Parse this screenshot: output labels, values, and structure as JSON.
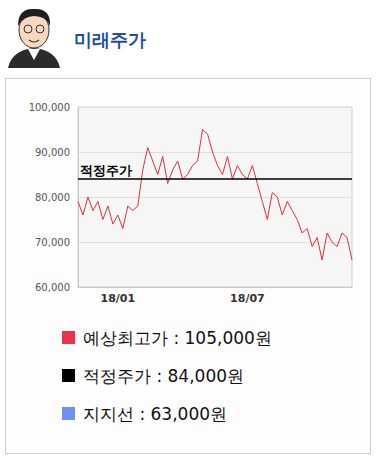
{
  "header": {
    "title": "미래주가"
  },
  "chart_data": {
    "type": "line",
    "categories": [
      null,
      null,
      null,
      null,
      null,
      null,
      null,
      null,
      "18/01",
      null,
      null,
      null,
      null,
      null,
      null,
      null,
      null,
      null,
      null,
      null,
      null,
      null,
      null,
      null,
      null,
      null,
      null,
      null,
      null,
      null,
      null,
      null,
      null,
      null,
      "18/07",
      null,
      null,
      null,
      null,
      null,
      null,
      null,
      null,
      null,
      null,
      null,
      null,
      null,
      null,
      null,
      null,
      null,
      null,
      null,
      null,
      null
    ],
    "values": [
      79000,
      76000,
      80000,
      77000,
      79000,
      75000,
      78000,
      74000,
      76000,
      73000,
      78000,
      77000,
      78000,
      86000,
      91000,
      88000,
      85000,
      89000,
      83000,
      86000,
      88000,
      84000,
      85000,
      87000,
      88000,
      95000,
      94000,
      90000,
      87000,
      85000,
      89000,
      84000,
      87000,
      85000,
      84000,
      87000,
      83000,
      79000,
      75000,
      81000,
      80000,
      76000,
      79000,
      77000,
      75000,
      72000,
      73000,
      69000,
      71000,
      66000,
      72000,
      70000,
      69000,
      72000,
      71000,
      66000
    ],
    "color": "#e0303f",
    "ylim": [
      60000,
      100000
    ],
    "yticks": [
      {
        "value": 60000,
        "label": "60,000"
      },
      {
        "value": 70000,
        "label": "70,000"
      },
      {
        "value": 80000,
        "label": "80,000"
      },
      {
        "value": 90000,
        "label": "90,000"
      },
      {
        "value": 100000,
        "label": "100,000"
      }
    ],
    "grid": true,
    "annotations": [
      {
        "text": "적정주가",
        "y": 84000,
        "color": "#000000"
      }
    ]
  },
  "legend_items": [
    {
      "label": "예상최고가 : 105,000원",
      "color": "#e8334a"
    },
    {
      "label": "적정주가 : 84,000원",
      "color": "#000000"
    },
    {
      "label": "지지선 : 63,000원",
      "color": "#6f8ff5"
    }
  ]
}
